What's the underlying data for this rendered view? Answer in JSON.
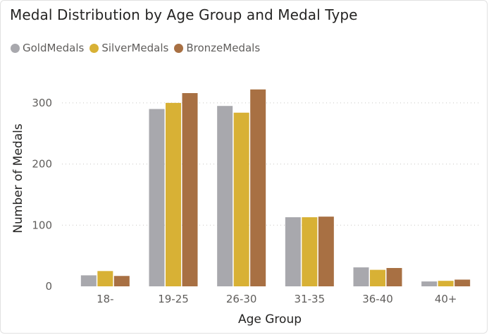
{
  "chart_data": {
    "type": "bar",
    "title": "Medal Distribution by Age Group and Medal Type",
    "xlabel": "Age Group",
    "ylabel": "Number of Medals",
    "categories": [
      "18-",
      "19-25",
      "26-30",
      "31-35",
      "36-40",
      "40+"
    ],
    "series": [
      {
        "name": "GoldMedals",
        "color": "#a8a8ad",
        "values": [
          18,
          290,
          295,
          113,
          31,
          8
        ]
      },
      {
        "name": "SilverMedals",
        "color": "#d8b135",
        "values": [
          25,
          300,
          284,
          113,
          27,
          9
        ]
      },
      {
        "name": "BronzeMedals",
        "color": "#a87043",
        "values": [
          17,
          316,
          322,
          114,
          30,
          11
        ]
      }
    ],
    "ylim": [
      0,
      346
    ],
    "yticks": [
      0,
      100,
      200,
      300
    ],
    "grid": true,
    "legend_position": "top-left"
  }
}
